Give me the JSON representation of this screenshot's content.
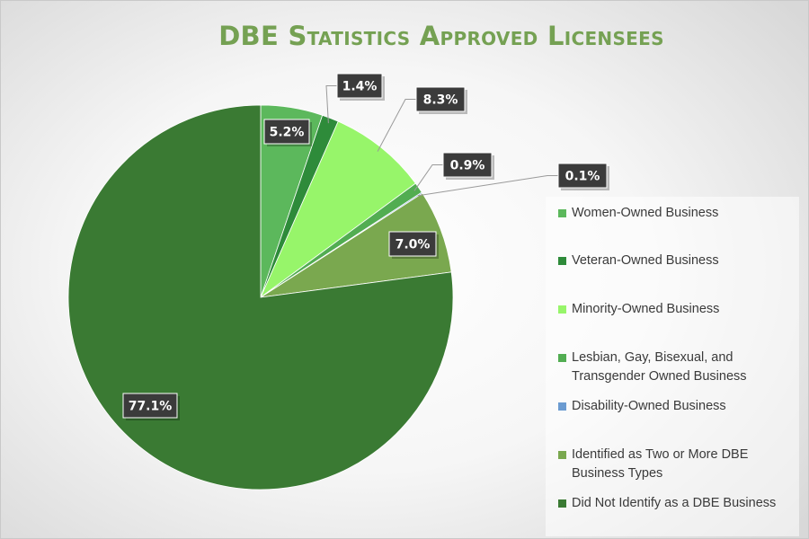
{
  "chart_data": {
    "type": "pie",
    "title": "DBE Statistics Approved Licensees",
    "legend_placement": "right",
    "slices": [
      {
        "name": "Women-Owned Business",
        "value": 5.2,
        "label": "5.2%",
        "color": "#5cb85c"
      },
      {
        "name": "Veteran-Owned Business",
        "value": 1.4,
        "label": "1.4%",
        "color": "#2e8b3a"
      },
      {
        "name": "Minority-Owned Business",
        "value": 8.3,
        "label": "8.3%",
        "color": "#97f56a"
      },
      {
        "name": "Lesbian, Gay, Bisexual, and Transgender Owned Business",
        "value": 0.9,
        "label": "0.9%",
        "color": "#52ad52"
      },
      {
        "name": "Disability-Owned Business",
        "value": 0.1,
        "label": "0.1%",
        "color": "#6b9bd1"
      },
      {
        "name": "Identified as Two or More DBE Business Types",
        "value": 7.0,
        "label": "7.0%",
        "color": "#7aa84f"
      },
      {
        "name": "Did Not Identify as a DBE Business",
        "value": 77.1,
        "label": "77.1%",
        "color": "#3a7a33"
      }
    ]
  }
}
